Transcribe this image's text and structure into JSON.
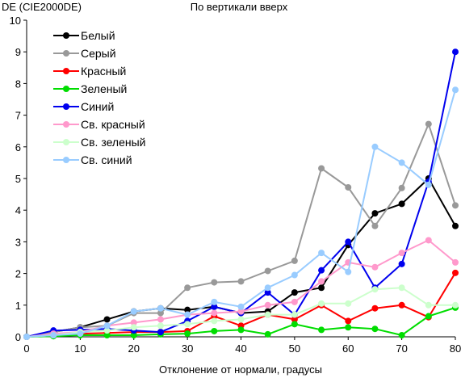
{
  "chart_data": {
    "type": "line",
    "title": "По вертикали вверх",
    "ylabel": "DE (CIE2000DE)",
    "xlabel": "Отклонение от нормали, градусы",
    "x": [
      0,
      5,
      10,
      15,
      20,
      25,
      30,
      35,
      40,
      45,
      50,
      55,
      60,
      65,
      70,
      75,
      80
    ],
    "xlim": [
      0,
      80
    ],
    "ylim": [
      0,
      10
    ],
    "xticks": [
      0,
      10,
      20,
      30,
      40,
      50,
      60,
      70,
      80
    ],
    "yticks": [
      0,
      1,
      2,
      3,
      4,
      5,
      6,
      7,
      8,
      9,
      10
    ],
    "grid": false,
    "legend_position": "top-left",
    "series": [
      {
        "name": "Белый",
        "color": "#000000",
        "values": [
          0,
          0.15,
          0.3,
          0.55,
          0.8,
          0.9,
          0.85,
          0.95,
          0.75,
          0.8,
          1.4,
          1.55,
          2.9,
          3.9,
          4.2,
          5.0,
          3.5
        ]
      },
      {
        "name": "Серый",
        "color": "#999999",
        "values": [
          0,
          0.15,
          0.3,
          0.35,
          0.75,
          0.75,
          1.55,
          1.72,
          1.75,
          2.08,
          2.4,
          5.32,
          4.72,
          3.5,
          4.7,
          6.72,
          4.15
        ]
      },
      {
        "name": "Красный",
        "color": "#ff0000",
        "values": [
          0,
          0.05,
          0.1,
          0.12,
          0.15,
          0.15,
          0.18,
          0.65,
          0.35,
          0.7,
          0.55,
          1.0,
          0.5,
          0.9,
          1.0,
          0.62,
          2.02
        ]
      },
      {
        "name": "Зеленый",
        "color": "#00dd00",
        "values": [
          0,
          0.02,
          0.05,
          0.05,
          0.05,
          0.08,
          0.1,
          0.18,
          0.22,
          0.08,
          0.4,
          0.22,
          0.3,
          0.25,
          0.05,
          0.65,
          0.92
        ]
      },
      {
        "name": "Синий",
        "color": "#0000ee",
        "values": [
          0,
          0.2,
          0.22,
          0.25,
          0.2,
          0.15,
          0.5,
          0.95,
          0.75,
          1.4,
          0.7,
          2.1,
          3.0,
          1.55,
          2.3,
          4.9,
          9.0
        ]
      },
      {
        "name": "Св. красный",
        "color": "#ff99cc",
        "values": [
          0,
          0.1,
          0.15,
          0.35,
          0.45,
          0.55,
          0.7,
          0.75,
          0.8,
          1.0,
          1.1,
          1.75,
          2.35,
          2.2,
          2.65,
          3.05,
          2.35
        ]
      },
      {
        "name": "Св. зеленый",
        "color": "#ccffcc",
        "values": [
          0,
          0.05,
          0.15,
          0.2,
          0.3,
          0.35,
          0.4,
          0.5,
          0.55,
          0.7,
          0.7,
          1.05,
          1.05,
          1.5,
          1.55,
          1.0,
          1.0
        ]
      },
      {
        "name": "Св. синий",
        "color": "#99ccff",
        "values": [
          0,
          0.05,
          0.1,
          0.35,
          0.8,
          0.9,
          0.7,
          1.1,
          0.95,
          1.55,
          1.95,
          2.65,
          2.05,
          6.0,
          5.5,
          4.8,
          7.8
        ]
      }
    ]
  }
}
